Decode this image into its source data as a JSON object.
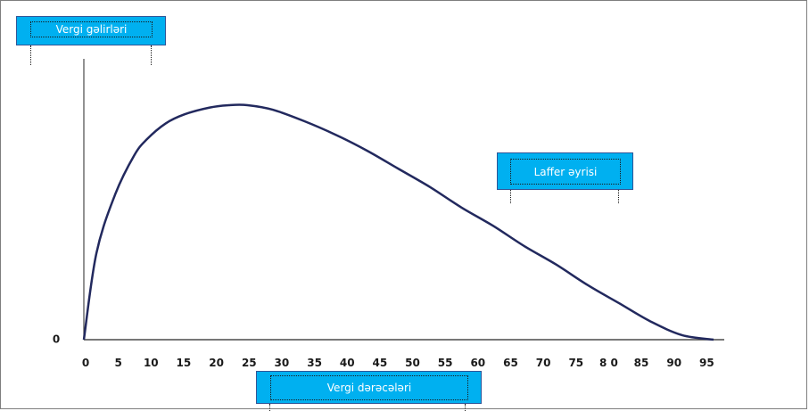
{
  "chart_data": {
    "type": "line",
    "ylabel": "Vergi gəlirləri",
    "xlabel": "Vergi dərəcələri",
    "series_label": "Laffer əyrisi",
    "y_origin_label": "0",
    "x_tick_labels": [
      "0",
      "5",
      "10",
      "15",
      "20",
      "25",
      "30",
      "35",
      "40",
      "45",
      "50",
      "55",
      "60",
      "65",
      "70",
      "75",
      "8 0",
      "85",
      "90",
      "95"
    ],
    "x_tick_values": [
      0,
      5,
      10,
      15,
      20,
      25,
      30,
      35,
      40,
      45,
      50,
      55,
      60,
      65,
      70,
      75,
      80,
      85,
      90,
      95
    ],
    "xlim": [
      0,
      100
    ],
    "ylim": [
      0,
      1.1
    ],
    "series": [
      {
        "x": [
          0,
          2,
          5,
          8,
          10,
          13,
          16,
          20,
          23,
          26,
          30,
          35,
          40,
          45,
          50,
          55,
          60,
          65,
          70,
          75,
          80,
          85,
          90,
          95,
          100
        ],
        "values": [
          0,
          0.38,
          0.64,
          0.81,
          0.88,
          0.95,
          0.99,
          1.02,
          1.03,
          1.03,
          1.01,
          0.96,
          0.9,
          0.83,
          0.75,
          0.67,
          0.58,
          0.5,
          0.41,
          0.33,
          0.24,
          0.16,
          0.08,
          0.02,
          0
        ]
      }
    ],
    "colors": {
      "curve": "#22295e",
      "axis": "#4a4a4a",
      "label_fill": "#00b0f0",
      "label_border": "#2f5597"
    }
  }
}
